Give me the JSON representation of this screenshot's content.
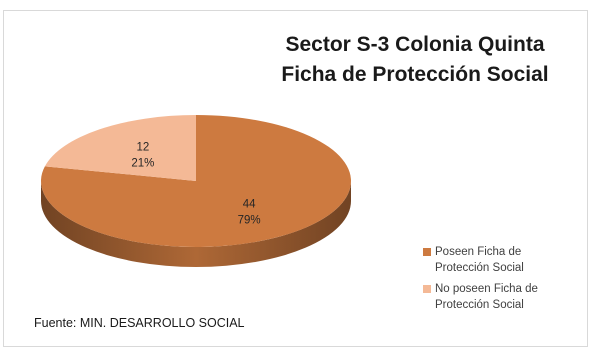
{
  "chart_data": {
    "type": "pie",
    "title_lines": [
      "Sector S-3 Colonia Quinta",
      "Ficha de Protección Social"
    ],
    "categories": [
      "Poseen Ficha de Protección Social",
      "No poseen Ficha de Protección Social"
    ],
    "legend_lines": [
      [
        "Poseen Ficha de",
        "Protección Social"
      ],
      [
        "No poseen Ficha de",
        "Protección Social"
      ]
    ],
    "values": [
      44,
      12
    ],
    "percent_labels": [
      "79%",
      "21%"
    ],
    "colors": [
      "#cd7a40",
      "#f4b996"
    ],
    "legend": "right",
    "source": "Fuente: MIN. DESARROLLO SOCIAL"
  }
}
